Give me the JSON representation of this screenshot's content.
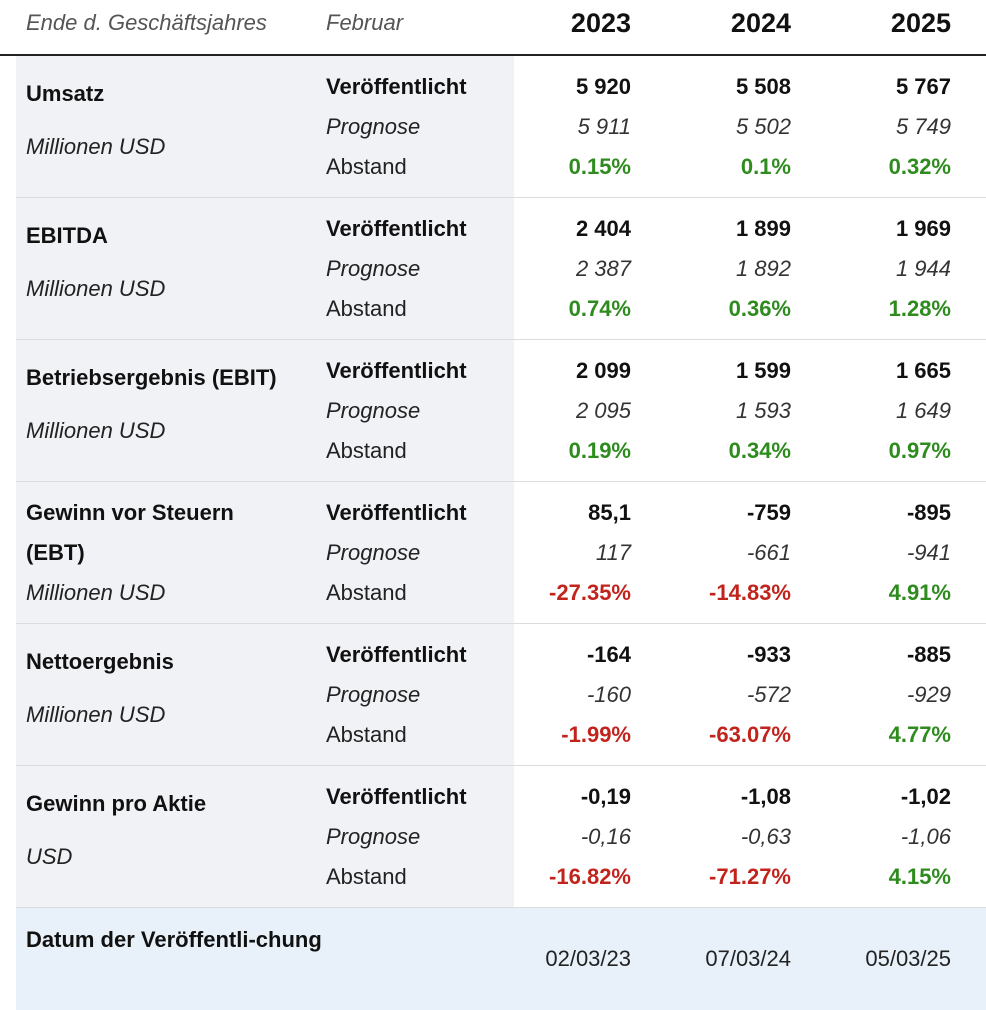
{
  "header": {
    "label_fiscal": "Ende d. Geschäftsjahres",
    "label_month": "Februar",
    "years": [
      "2023",
      "2024",
      "2025"
    ]
  },
  "row_labels": {
    "published": "Veröffentlicht",
    "forecast": "Prognose",
    "gap": "Abstand"
  },
  "sections": [
    {
      "title": "Umsatz",
      "unit": "Millionen USD",
      "published": [
        "5 920",
        "5 508",
        "5 767"
      ],
      "forecast": [
        "5 911",
        "5 502",
        "5 749"
      ],
      "gap": [
        "0.15%",
        "0.1%",
        "0.32%"
      ]
    },
    {
      "title": "EBITDA",
      "unit": "Millionen USD",
      "published": [
        "2 404",
        "1 899",
        "1 969"
      ],
      "forecast": [
        "2 387",
        "1 892",
        "1 944"
      ],
      "gap": [
        "0.74%",
        "0.36%",
        "1.28%"
      ]
    },
    {
      "title": "Betriebsergebnis (EBIT)",
      "unit": "Millionen USD",
      "published": [
        "2 099",
        "1 599",
        "1 665"
      ],
      "forecast": [
        "2 095",
        "1 593",
        "1 649"
      ],
      "gap": [
        "0.19%",
        "0.34%",
        "0.97%"
      ]
    },
    {
      "title": "Gewinn vor Steuern (EBT)",
      "unit": "Millionen USD",
      "published": [
        "85,1",
        "-759",
        "-895"
      ],
      "forecast": [
        "117",
        "-661",
        "-941"
      ],
      "gap": [
        "-27.35%",
        "-14.83%",
        "4.91%"
      ]
    },
    {
      "title": "Nettoergebnis",
      "unit": "Millionen USD",
      "published": [
        "-164",
        "-933",
        "-885"
      ],
      "forecast": [
        "-160",
        "-572",
        "-929"
      ],
      "gap": [
        "-1.99%",
        "-63.07%",
        "4.77%"
      ]
    },
    {
      "title": "Gewinn pro Aktie",
      "unit": "USD",
      "published": [
        "-0,19",
        "-1,08",
        "-1,02"
      ],
      "forecast": [
        "-0,16",
        "-0,63",
        "-1,06"
      ],
      "gap": [
        "-16.82%",
        "-71.27%",
        "4.15%"
      ]
    }
  ],
  "footer": {
    "title": "Datum der Veröffentli-chung",
    "dates": [
      "02/03/23",
      "07/03/24",
      "05/03/25"
    ]
  },
  "colors": {
    "positive": "#2e8b1e",
    "negative": "#c0241c",
    "label_shade": "#f1f2f6",
    "footer_bg": "#e8f1fa"
  }
}
